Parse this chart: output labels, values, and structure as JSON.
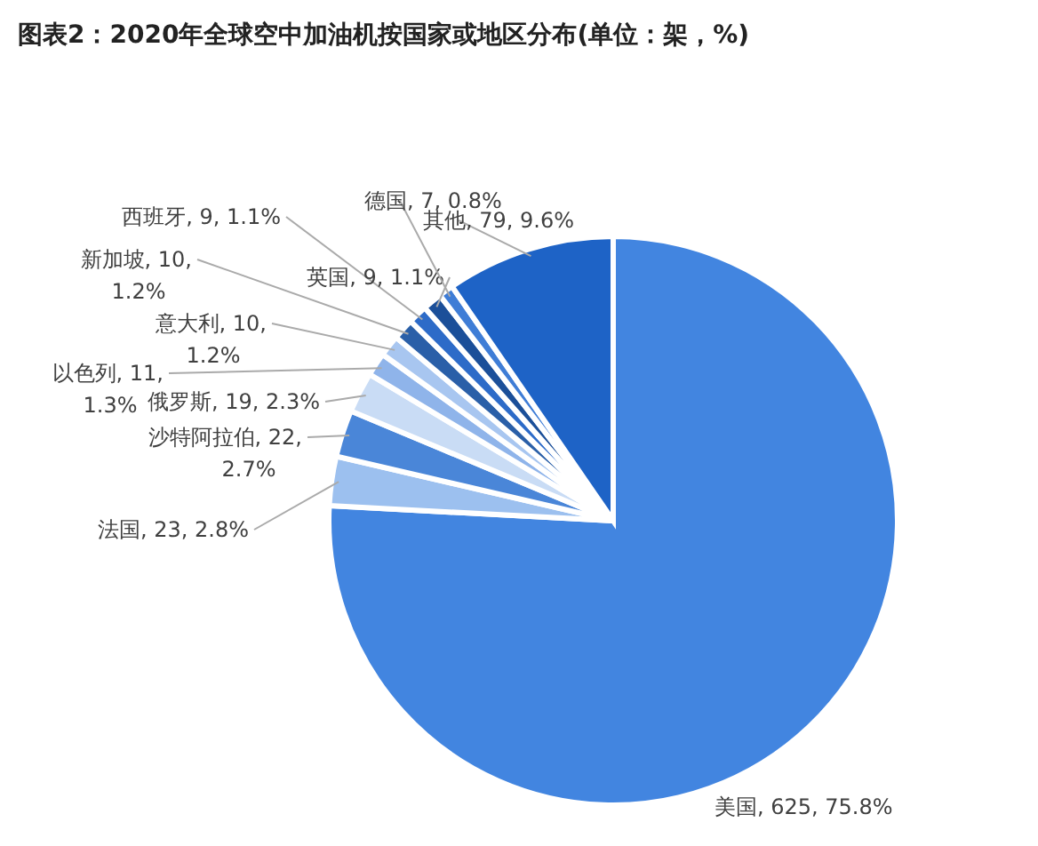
{
  "chart_data": {
    "type": "pie",
    "title": "图表2：2020年全球空中加油机按国家或地区分布(单位：架，%)",
    "categories": [
      "美国",
      "法国",
      "沙特阿拉伯",
      "俄罗斯",
      "以色列",
      "意大利",
      "新加坡",
      "西班牙",
      "英国",
      "德国",
      "其他"
    ],
    "values": [
      625,
      23,
      22,
      19,
      11,
      10,
      10,
      9,
      9,
      7,
      79
    ],
    "value_labels": [
      "625, 75.8%",
      "23, 2.8%",
      "22, 2.7%",
      "19, 2.3%",
      "11, 1.3%",
      "10, 1.2%",
      "10, 1.2%",
      "9, 1.1%",
      "9, 1.1%",
      "7, 0.8%",
      "79, 9.6%"
    ],
    "colors": [
      "#4285e0",
      "#9cc0ef",
      "#4a86d8",
      "#c9dcf5",
      "#8fb4ea",
      "#a8c6f0",
      "#2a5fa8",
      "#2d6bc8",
      "#1b4f99",
      "#3f7dd6",
      "#1e63c6"
    ]
  }
}
